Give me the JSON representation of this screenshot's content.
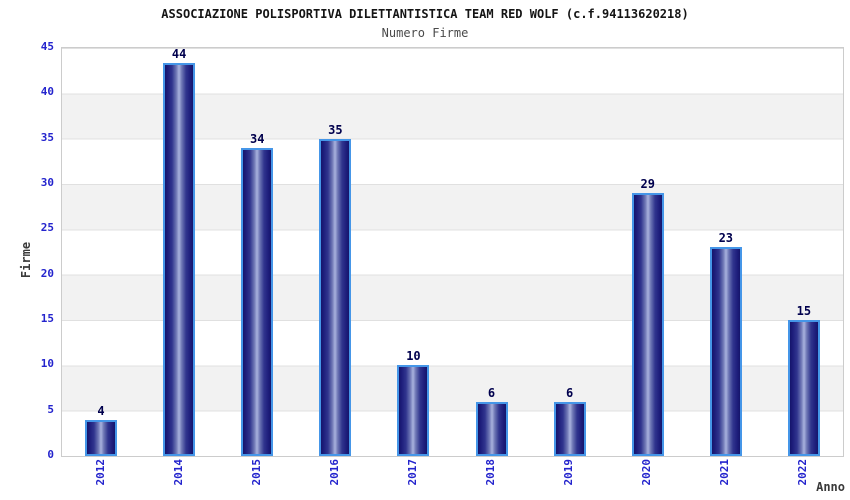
{
  "header": {
    "title": "ASSOCIAZIONE POLISPORTIVA DILETTANTISTICA TEAM RED WOLF (c.f.94113620218)",
    "subtitle": "Numero Firme"
  },
  "chart_data": {
    "type": "bar",
    "title": "ASSOCIAZIONE POLISPORTIVA DILETTANTISTICA TEAM RED WOLF (c.f.94113620218)",
    "subtitle": "Numero Firme",
    "categories": [
      "2012",
      "2014",
      "2015",
      "2016",
      "2017",
      "2018",
      "2019",
      "2020",
      "2021",
      "2022"
    ],
    "values": [
      4,
      44,
      34,
      35,
      10,
      6,
      6,
      29,
      23,
      15
    ],
    "xlabel": "Anno",
    "ylabel": "Firme",
    "ylim": [
      0,
      45
    ],
    "ytick_step": 5,
    "yticks": [
      0,
      5,
      10,
      15,
      20,
      25,
      30,
      35,
      40,
      45
    ],
    "grid": "alternating horizontal bands with gridlines every 5 units",
    "legend_position": "none",
    "colors": {
      "bar_edge_dark": "#15156b",
      "bar_center_light": "#a9b2de",
      "bar_border": "#4596e8",
      "tick_label_blue": "#2424cd",
      "value_label_navy": "#00004d",
      "band_gray": "#f2f2f2",
      "band_white": "#ffffff",
      "gridline": "#e0e0e0",
      "plot_border": "#cccccc",
      "title_color": "#141414",
      "subtitle_color": "#4a4a4a",
      "axis_title_color": "#3a3a3a"
    }
  }
}
